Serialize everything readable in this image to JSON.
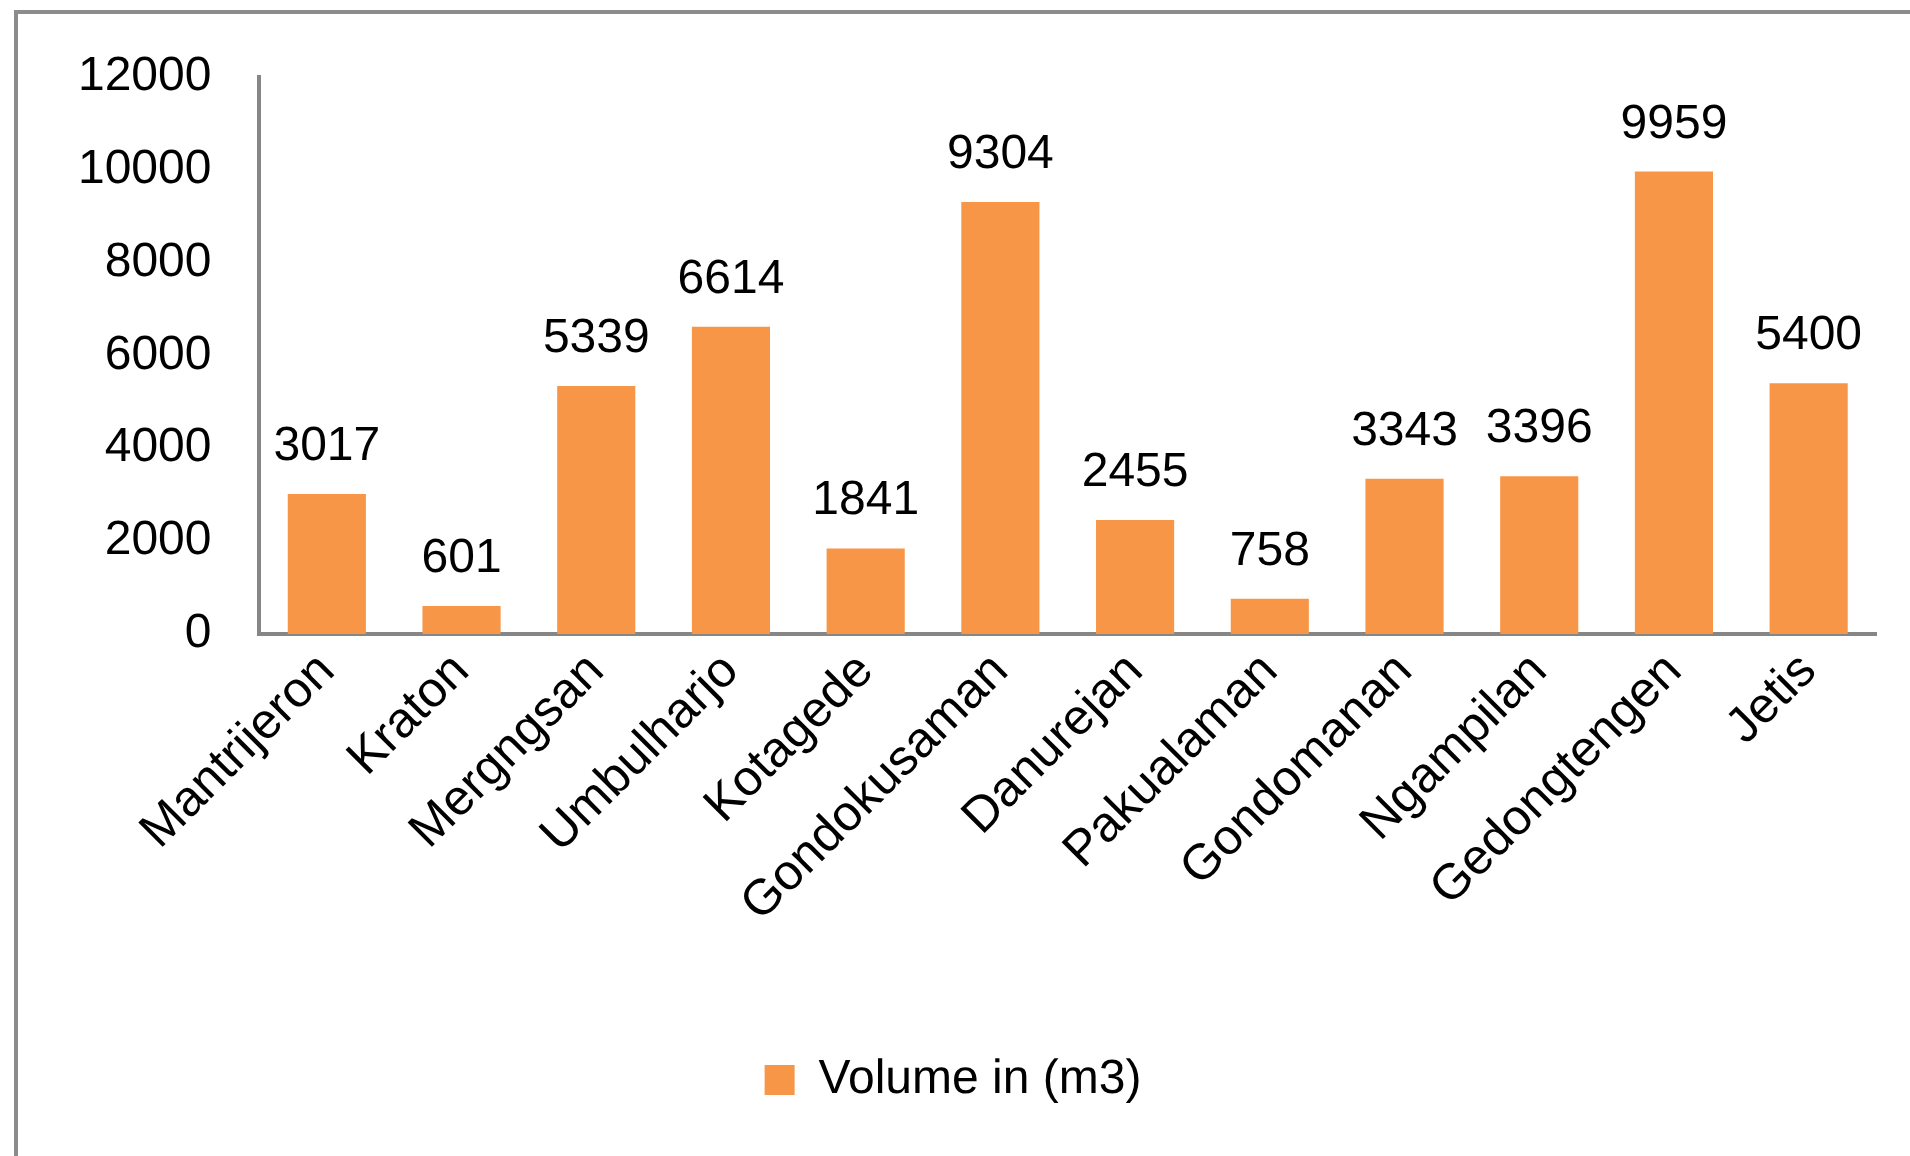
{
  "chart_data": {
    "type": "bar",
    "categories": [
      "Mantrijeron",
      "Kraton",
      "Mergngsan",
      "Umbulharjo",
      "Kotagede",
      "Gondokusaman",
      "Danurejan",
      "Pakualaman",
      "Gondomanan",
      "Ngampilan",
      "Gedongtengen",
      "Jetis"
    ],
    "series": [
      {
        "name": "Volume in (m3)",
        "color": "#f79646",
        "values": [
          3017,
          601,
          5339,
          6614,
          1841,
          9304,
          2455,
          758,
          3343,
          3396,
          9959,
          5400
        ]
      }
    ],
    "ylim": [
      0,
      12000
    ],
    "yticks": [
      0,
      2000,
      4000,
      6000,
      8000,
      10000,
      12000
    ],
    "data_labels": true,
    "legend": "bottom"
  }
}
